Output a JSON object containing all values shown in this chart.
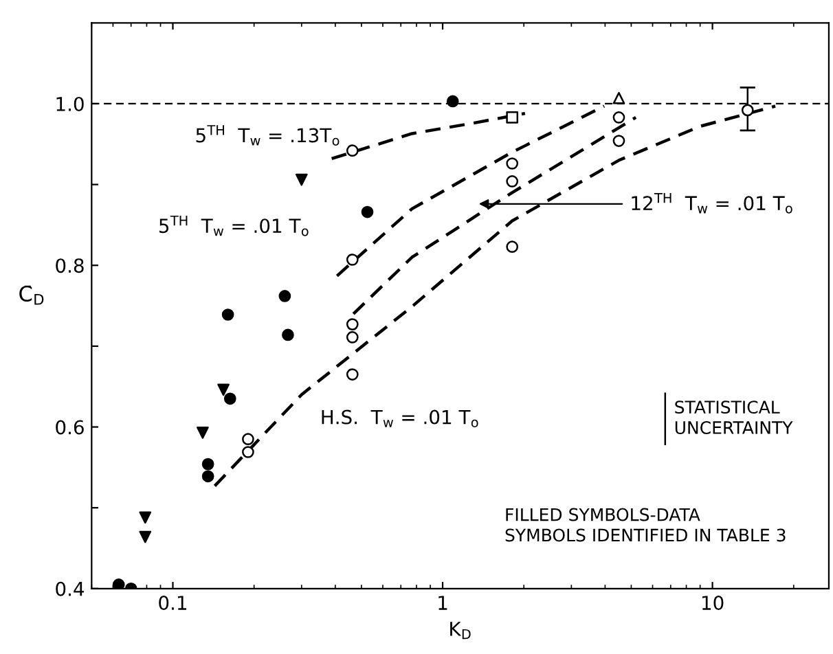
{
  "chart_data": {
    "type": "scatter",
    "xlabel": "K$_{D}$",
    "ylabel": "C̄$_{D}$",
    "log": "x",
    "xlim": [
      0.05,
      27
    ],
    "xticks": [
      0.1,
      1,
      10
    ],
    "ylim": [
      0.4,
      1.1
    ],
    "yticks": [
      0.4,
      {
        "value": 0.5,
        "label": null
      },
      0.6,
      {
        "value": 0.7,
        "label": null
      },
      0.8,
      {
        "value": 0.9,
        "label": null
      },
      {
        "value": 1.0,
        "label": "1.0"
      }
    ],
    "grid": false,
    "ref_lines": [
      {
        "axis": "y",
        "value": 1.0,
        "line_style": "dashed",
        "color": "#000000"
      }
    ],
    "series": [
      {
        "marker": "circle",
        "color": "#000000",
        "x": [
          0.063,
          0.07,
          0.135,
          0.135,
          0.163,
          0.16,
          0.26,
          0.267,
          0.526,
          1.09
        ],
        "values": [
          0.405,
          0.4,
          0.554,
          0.539,
          0.635,
          0.739,
          0.762,
          0.714,
          0.866,
          1.003
        ]
      },
      {
        "marker": "triangle",
        "color": "#000000",
        "x": [
          0.079,
          0.079,
          0.129,
          0.154,
          0.3
        ],
        "values": [
          0.488,
          0.464,
          0.593,
          0.646,
          0.906
        ]
      },
      {
        "marker": "circle",
        "color": "#ffffff",
        "x": [
          0.19,
          0.19,
          0.463,
          0.463,
          0.463,
          0.463,
          0.463,
          1.81,
          1.81,
          1.81,
          4.5,
          4.5,
          13.5
        ],
        "values": [
          0.585,
          0.569,
          0.727,
          0.711,
          0.665,
          0.807,
          0.942,
          0.926,
          0.904,
          0.823,
          0.983,
          0.954,
          0.992
        ],
        "errors": [
          null,
          null,
          null,
          null,
          null,
          null,
          null,
          null,
          null,
          null,
          null,
          null,
          [
            0.967,
            1.02
          ]
        ]
      },
      {
        "marker": "triangle_up",
        "color": "#ffffff",
        "x": [
          4.5
        ],
        "values": [
          1.007
        ]
      },
      {
        "marker": "square",
        "color": "#ffffff",
        "x": [
          1.81
        ],
        "values": [
          0.983
        ]
      },
      {
        "type": "line",
        "marker": "none",
        "line_style": "dashed",
        "color": "#000000",
        "x": [
          0.388,
          0.77,
          1.3,
          2.02
        ],
        "values": [
          0.932,
          0.963,
          0.976,
          0.988
        ]
      },
      {
        "type": "line",
        "marker": "none",
        "line_style": "dashed",
        "color": "#000000",
        "x": [
          0.406,
          0.77,
          1.81,
          3.97
        ],
        "values": [
          0.787,
          0.87,
          0.94,
          0.997
        ]
      },
      {
        "type": "line",
        "marker": "none",
        "line_style": "dashed",
        "color": "#000000",
        "x": [
          0.467,
          0.77,
          1.81,
          5.2
        ],
        "values": [
          0.74,
          0.81,
          0.89,
          0.983
        ]
      },
      {
        "type": "line",
        "marker": "none",
        "line_style": "dashed",
        "color": "#000000",
        "x": [
          0.143,
          0.3,
          0.77,
          1.81,
          4.5,
          9.0,
          17.1
        ],
        "values": [
          0.527,
          0.64,
          0.749,
          0.855,
          0.93,
          0.972,
          0.997
        ]
      }
    ],
    "annotations": [
      "5$^{TH}$  T$_{w}$ = .13T$_{o}$",
      "5$^{TH}$  T$_{w}$ = .01 T$_{o}$",
      "12$^{TH}$  T$_{w}$ = .01 T$_{o}$",
      "H.S.  T$_{w}$ = .01 T$_{o}$",
      "STATISTICAL\nUNCERTAINTY",
      "FILLED SYMBOLS-DATA\nSYMBOLS IDENTIFIED IN TABLE 3"
    ]
  }
}
